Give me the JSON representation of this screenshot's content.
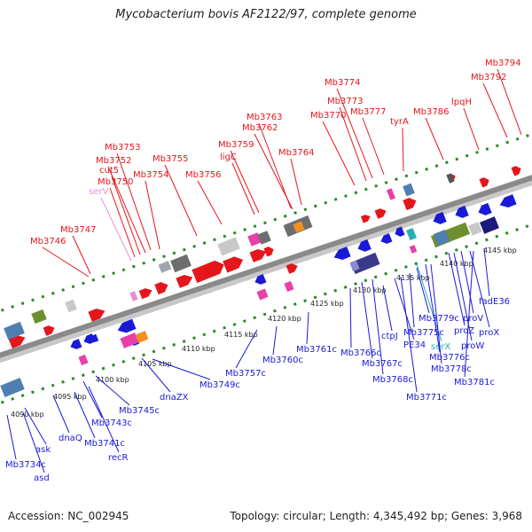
{
  "title": "Mycobacterium bovis AF2122/97, complete genome",
  "footer": {
    "accession_label": "Accession:",
    "accession": "NC_002945",
    "topology_label": "Topology:",
    "topology": "circular",
    "length_label": "Length:",
    "length": "4,345,492 bp",
    "genes_label": "Genes:",
    "genes": "3,968"
  },
  "colors": {
    "forward_gene": "#e4161c",
    "reverse_gene": "#1a1ad6",
    "trna": "#e98fd0",
    "rna_teal": "#27b0b0",
    "backbone": "#8a8a8a",
    "tick": "#2a8a2a"
  },
  "scale_ticks": [
    "4090 kbp",
    "4095 kbp",
    "4100 kbp",
    "4105 kbp",
    "4110 kbp",
    "4115 kbp",
    "4120 kbp",
    "4125 kbp",
    "4130 kbp",
    "4135 kbp",
    "4140 kbp",
    "4145 kbp"
  ],
  "top_labels": [
    "Mb3746",
    "Mb3747",
    "serV",
    "Mb3750",
    "cut5",
    "Mb3752",
    "Mb3753",
    "Mb3754",
    "Mb3755",
    "Mb3756",
    "ligC",
    "Mb3759",
    "Mb3762",
    "Mb3763",
    "Mb3764",
    "Mb3770",
    "Mb3773",
    "Mb3774",
    "Mb3777",
    "tyrA",
    "Mb3786",
    "lpqH",
    "Mb3792",
    "Mb3794"
  ],
  "bottom_labels": [
    "Mb3734c",
    "asd",
    "ask",
    "dnaQ",
    "Mb3741c",
    "recR",
    "Mb3743c",
    "Mb3745c",
    "dnaZX",
    "Mb3749c",
    "Mb3757c",
    "Mb3760c",
    "Mb3761c",
    "Mb3766c",
    "Mb3767c",
    "Mb3768c",
    "ctpJ",
    "PE34",
    "Mb3771c",
    "Mb3775c",
    "serX",
    "Mb3776c",
    "Mb3779c",
    "Mb3778c",
    "proZ",
    "proW",
    "proV",
    "proX",
    "Mb3781c",
    "fadE36"
  ]
}
